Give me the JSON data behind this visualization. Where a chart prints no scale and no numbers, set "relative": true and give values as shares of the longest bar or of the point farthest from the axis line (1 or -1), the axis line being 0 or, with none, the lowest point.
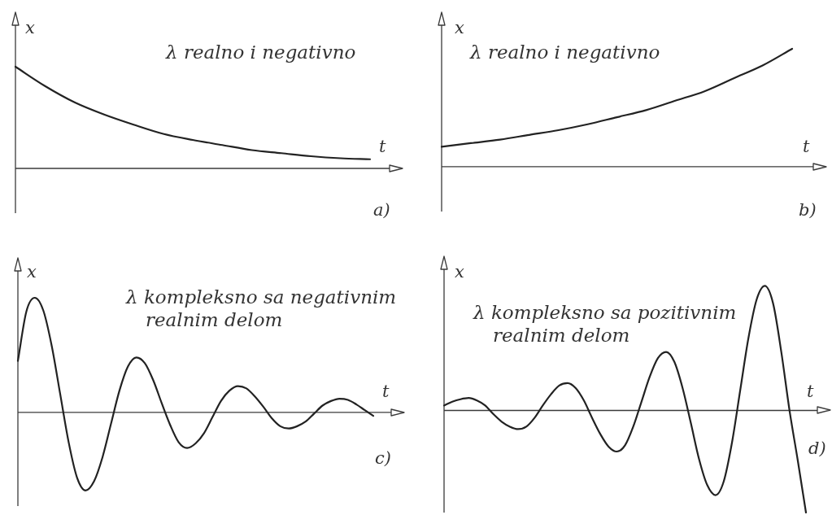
{
  "chart_data": [
    {
      "type": "line",
      "title": "λ realno i negativno",
      "xlabel": "t",
      "ylabel": "x",
      "annotations": [
        "a)"
      ],
      "relative": true,
      "categories": [
        null,
        null,
        null,
        null,
        null,
        null,
        null,
        null,
        null,
        null,
        null,
        null,
        null
      ],
      "series": [
        {
          "color": "#222222",
          "values": [
            1.0,
            0.81,
            0.65,
            0.53,
            0.43,
            0.34,
            0.28,
            0.23,
            0.18,
            0.15,
            0.12,
            0.1,
            0.09
          ]
        }
      ]
    },
    {
      "type": "line",
      "title": "λ realno i negativno",
      "xlabel": "t",
      "ylabel": "x",
      "annotations": [
        "b)"
      ],
      "relative": true,
      "categories": [
        null,
        null,
        null,
        null,
        null,
        null,
        null,
        null,
        null,
        null,
        null,
        null,
        null
      ],
      "series": [
        {
          "color": "#222222",
          "values": [
            0.17,
            0.2,
            0.23,
            0.27,
            0.31,
            0.36,
            0.42,
            0.48,
            0.56,
            0.64,
            0.75,
            0.86,
            1.0
          ]
        }
      ]
    },
    {
      "type": "line",
      "title": "λ kompleksno sa negativnim realnim delom",
      "xlabel": "t",
      "ylabel": "x",
      "annotations": [
        "c)"
      ],
      "relative": true,
      "categories": [
        null,
        null,
        null,
        null,
        null,
        null,
        null,
        null,
        null,
        null,
        null,
        null,
        null,
        null,
        null,
        null,
        null,
        null,
        null,
        null,
        null,
        null,
        null,
        null,
        null,
        null,
        null,
        null,
        null,
        null,
        null,
        null,
        null,
        null,
        null,
        null,
        null,
        null,
        null,
        null,
        null,
        null,
        null
      ],
      "series": [
        {
          "color": "#222222",
          "values": [
            0.45,
            0.88,
            1.0,
            0.89,
            0.58,
            0.16,
            -0.26,
            -0.57,
            -0.68,
            -0.6,
            -0.39,
            -0.1,
            0.19,
            0.4,
            0.48,
            0.43,
            0.28,
            0.08,
            -0.11,
            -0.26,
            -0.31,
            -0.27,
            -0.18,
            -0.04,
            0.1,
            0.19,
            0.23,
            0.21,
            0.14,
            0.05,
            -0.05,
            -0.12,
            -0.14,
            -0.12,
            -0.08,
            -0.01,
            0.06,
            0.1,
            0.12,
            0.11,
            0.07,
            0.02,
            -0.03
          ]
        }
      ]
    },
    {
      "type": "line",
      "title": "λ kompleksno sa pozitivnim realnim delom",
      "xlabel": "t",
      "ylabel": "x",
      "annotations": [
        "d)"
      ],
      "relative": true,
      "categories": [
        null,
        null,
        null,
        null,
        null,
        null,
        null,
        null,
        null,
        null,
        null,
        null,
        null,
        null,
        null,
        null,
        null,
        null,
        null,
        null,
        null,
        null,
        null,
        null,
        null,
        null,
        null,
        null,
        null,
        null,
        null,
        null,
        null,
        null,
        null,
        null,
        null,
        null,
        null,
        null,
        null,
        null,
        null,
        null,
        null
      ],
      "series": [
        {
          "color": "#222222",
          "values": [
            0.04,
            0.07,
            0.09,
            0.1,
            0.08,
            0.04,
            -0.03,
            -0.09,
            -0.13,
            -0.15,
            -0.13,
            -0.06,
            0.04,
            0.13,
            0.2,
            0.22,
            0.18,
            0.08,
            -0.06,
            -0.19,
            -0.29,
            -0.33,
            -0.28,
            -0.13,
            0.07,
            0.27,
            0.42,
            0.47,
            0.39,
            0.18,
            -0.1,
            -0.39,
            -0.6,
            -0.68,
            -0.57,
            -0.26,
            0.16,
            0.58,
            0.89,
            1.0,
            0.86,
            0.47,
            0,
            -0.4,
            -0.82
          ]
        }
      ]
    }
  ]
}
